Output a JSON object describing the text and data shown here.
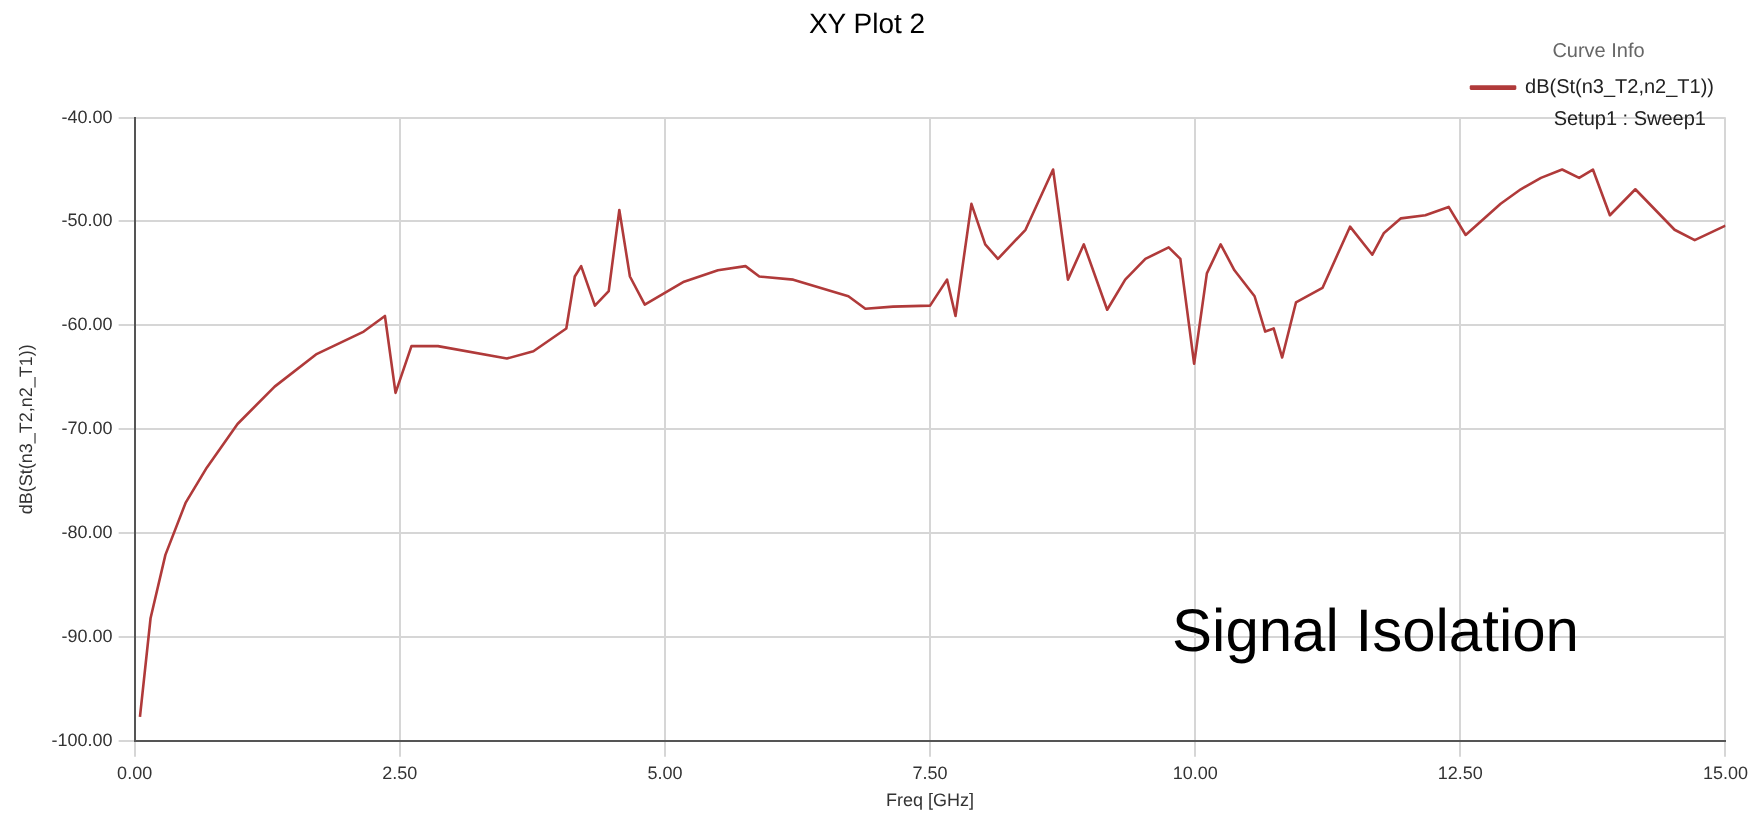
{
  "chart_data": {
    "type": "line",
    "title": "XY Plot 2",
    "xlabel": "Freq [GHz]",
    "ylabel": "dB(St(n3_T2,n2_T1))",
    "legend_title": "Curve Info",
    "annotations": [
      "Setup1 : Sweep1",
      "Signal Isolation"
    ],
    "xlim": [
      0,
      15
    ],
    "ylim": [
      -100,
      -40
    ],
    "xticks": [
      {
        "value": 0,
        "label": "0.00"
      },
      {
        "value": 2.5,
        "label": "2.50"
      },
      {
        "value": 5,
        "label": "5.00"
      },
      {
        "value": 7.5,
        "label": "7.50"
      },
      {
        "value": 10,
        "label": "10.00"
      },
      {
        "value": 12.5,
        "label": "12.50"
      },
      {
        "value": 15,
        "label": "15.00"
      }
    ],
    "yticks": [
      {
        "value": -100,
        "label": "-100.00"
      },
      {
        "value": -90,
        "label": "-90.00"
      },
      {
        "value": -80,
        "label": "-80.00"
      },
      {
        "value": -70,
        "label": "-70.00"
      },
      {
        "value": -60,
        "label": "-60.00"
      },
      {
        "value": -50,
        "label": "-50.00"
      },
      {
        "value": -40,
        "label": "-40.00"
      }
    ],
    "grid": true,
    "legend": "top right",
    "marker": "none",
    "line_style": "solid",
    "series": [
      {
        "name": "dB(St(n3_T2,n2_T1))",
        "color": "#b03a3a",
        "x": [
          0.05,
          0.15,
          0.29,
          0.48,
          0.68,
          0.97,
          1.32,
          1.71,
          2.16,
          2.36,
          2.46,
          2.61,
          2.86,
          3.51,
          3.76,
          4.07,
          4.15,
          4.21,
          4.34,
          4.47,
          4.57,
          4.67,
          4.81,
          5.18,
          5.5,
          5.76,
          5.89,
          6.21,
          6.73,
          6.89,
          7.15,
          7.5,
          7.66,
          7.74,
          7.89,
          8.02,
          8.14,
          8.4,
          8.66,
          8.8,
          8.95,
          9.17,
          9.34,
          9.53,
          9.75,
          9.86,
          9.99,
          10.11,
          10.24,
          10.37,
          10.56,
          10.66,
          10.74,
          10.82,
          10.95,
          11.2,
          11.46,
          11.67,
          11.78,
          11.94,
          12.17,
          12.39,
          12.55,
          12.88,
          13.07,
          13.26,
          13.46,
          13.62,
          13.75,
          13.91,
          14.15,
          14.52,
          14.71,
          15
        ],
        "values": [
          -97.7,
          -88.2,
          -82.1,
          -77.1,
          -73.7,
          -69.5,
          -65.9,
          -62.8,
          -60.6,
          -59.1,
          -66.5,
          -62,
          -62,
          -63.2,
          -62.5,
          -60.3,
          -55.3,
          -54.3,
          -58.1,
          -56.7,
          -48.9,
          -55.3,
          -58,
          -55.8,
          -54.7,
          -54.3,
          -55.3,
          -55.6,
          -57.2,
          -58.4,
          -58.2,
          -58.1,
          -55.6,
          -59.1,
          -48.3,
          -52.2,
          -53.6,
          -50.8,
          -45,
          -55.6,
          -52.2,
          -58.5,
          -55.6,
          -53.6,
          -52.5,
          -53.6,
          -63.7,
          -55,
          -52.2,
          -54.7,
          -57.2,
          -60.6,
          -60.3,
          -63.1,
          -57.8,
          -56.4,
          -50.5,
          -53.2,
          -51.1,
          -49.7,
          -49.4,
          -48.6,
          -51.3,
          -48.3,
          -46.9,
          -45.8,
          -45,
          -45.8,
          -45,
          -49.4,
          -46.9,
          -50.8,
          -51.8,
          -50.4
        ]
      }
    ]
  }
}
